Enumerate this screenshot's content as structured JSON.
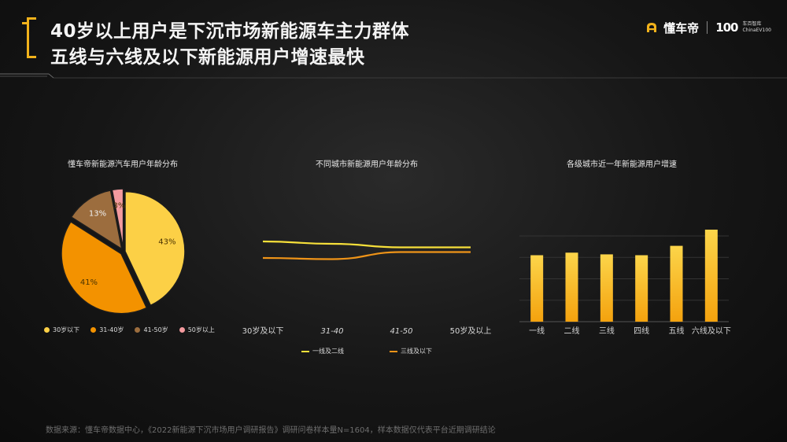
{
  "header": {
    "title_line1": "40岁以上用户是下沉市场新能源车主力群体",
    "title_line2": "五线与六线及以下新能源用户增速最快"
  },
  "brand": {
    "name": "懂车帝",
    "badge": "100",
    "sub_line1": "车百智库",
    "sub_line2": "ChinaEV100"
  },
  "colors": {
    "accent": "#f2b21b",
    "pie": [
      "#fcd046",
      "#f39200",
      "#9c6d3e",
      "#f39a9e"
    ],
    "line_series": [
      "#f7e03a",
      "#ef9418"
    ]
  },
  "chart_data": [
    {
      "type": "pie",
      "title": "懂车帝新能源汽车用户年龄分布",
      "categories": [
        "30岁以下",
        "31-40岁",
        "41-50岁",
        "50岁以上"
      ],
      "values": [
        43,
        41,
        13,
        3
      ],
      "data_labels": [
        "43%",
        "41%",
        "13%",
        "3%"
      ],
      "legend": "bottom"
    },
    {
      "type": "line",
      "title": "不同城市新能源用户年龄分布",
      "categories": [
        "30岁及以下",
        "31-40",
        "41-50",
        "50岁及以上"
      ],
      "series": [
        {
          "name": "一线及二线",
          "values": [
            0.62,
            0.6,
            0.57,
            0.57
          ]
        },
        {
          "name": "三线及以下",
          "values": [
            0.48,
            0.47,
            0.53,
            0.53
          ]
        }
      ],
      "ylim": [
        0,
        1
      ],
      "grid": false,
      "legend": "bottom"
    },
    {
      "type": "bar",
      "title": "各级城市近一年新能源用户增速",
      "categories": [
        "一线",
        "二线",
        "三线",
        "四线",
        "五线",
        "六线及以下"
      ],
      "values": [
        0.78,
        0.81,
        0.79,
        0.78,
        0.89,
        1.08
      ],
      "ylim": [
        0,
        1.2
      ],
      "grid": true
    }
  ],
  "source": "数据来源：懂车帝数据中心，《2022新能源下沉市场用户调研报告》调研问卷样本量N=1604，样本数据仅代表平台近期调研结论"
}
